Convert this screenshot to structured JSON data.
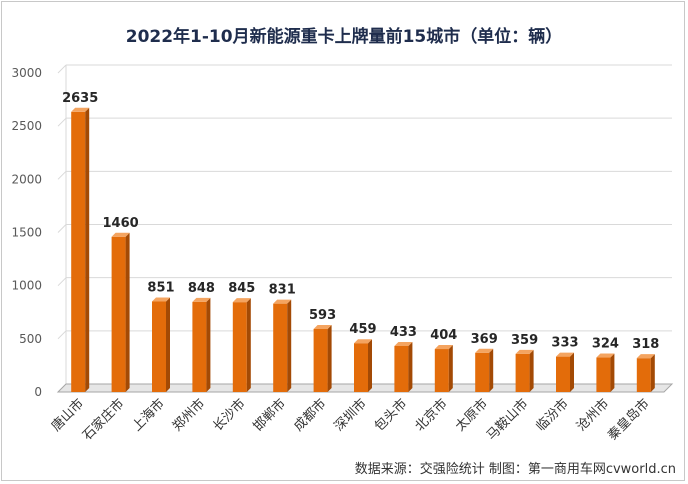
{
  "title": "2022年1-10月新能源重卡上牌量前15城市（单位：辆）",
  "source": "数据来源：交强险统计   制图：第一商用车网cvworld.cn",
  "colors": {
    "bar_front": "#e36c0a",
    "bar_side": "#a34a05",
    "bar_top": "#f4a460",
    "floor": "#a6a6a6",
    "grid": "#d9d9d9"
  },
  "chart_data": {
    "type": "bar",
    "title": "2022年1-10月新能源重卡上牌量前15城市（单位：辆）",
    "categories": [
      "唐山市",
      "石家庄市",
      "上海市",
      "郑州市",
      "长沙市",
      "邯郸市",
      "成都市",
      "深圳市",
      "包头市",
      "北京市",
      "太原市",
      "马鞍山市",
      "临汾市",
      "沧州市",
      "秦皇岛市"
    ],
    "values": [
      2635,
      1460,
      851,
      848,
      845,
      831,
      593,
      459,
      433,
      404,
      369,
      359,
      333,
      324,
      318
    ],
    "ylim": [
      0,
      3000
    ],
    "yticks": [
      0,
      500,
      1000,
      1500,
      2000,
      2500,
      3000
    ],
    "grid": true,
    "data_labels": true,
    "style": "3d-column"
  }
}
